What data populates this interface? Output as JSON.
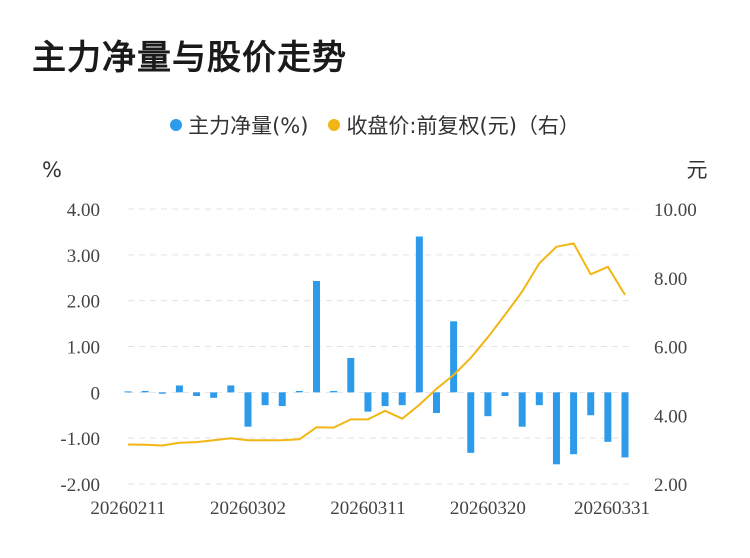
{
  "title": "主力净量与股价走势",
  "legend": [
    {
      "label": "主力净量(%)",
      "color": "#2e9bea"
    },
    {
      "label": "收盘价:前复权(元)（右）",
      "color": "#f2b614"
    }
  ],
  "chart_data": {
    "type": "bar+line",
    "title": "主力净量与股价走势",
    "left_axis": {
      "unit": "%",
      "ticks": [
        "4.00",
        "3.00",
        "2.00",
        "1.00",
        "0",
        "-1.00",
        "-2.00"
      ],
      "range": [
        -2,
        4
      ]
    },
    "right_axis": {
      "unit": "元",
      "ticks": [
        "10.00",
        "8.00",
        "6.00",
        "4.00",
        "2.00"
      ],
      "range": [
        2,
        10
      ]
    },
    "x_tick_labels": [
      "20260211",
      "20260302",
      "20260311",
      "20260320",
      "20260331"
    ],
    "x_tick_index": [
      0,
      7,
      14,
      21,
      28
    ],
    "grid": "horizontal dashed",
    "series": [
      {
        "name": "主力净量(%)",
        "kind": "bar",
        "axis": "left",
        "color": "#2e9bea",
        "values": [
          0.02,
          0.03,
          -0.03,
          0.15,
          -0.08,
          -0.12,
          0.15,
          -0.75,
          -0.28,
          -0.3,
          0.03,
          2.43,
          0.03,
          0.75,
          -0.42,
          -0.3,
          -0.28,
          3.4,
          -0.45,
          1.55,
          -1.32,
          -0.52,
          -0.08,
          -0.75,
          -0.28,
          -1.57,
          -1.35,
          -0.5,
          -1.08,
          -1.42
        ]
      },
      {
        "name": "收盘价:前复权(元)（右）",
        "kind": "line",
        "axis": "right",
        "color": "#f2b614",
        "values": [
          3.15,
          3.14,
          3.12,
          3.2,
          3.22,
          3.27,
          3.33,
          3.27,
          3.27,
          3.27,
          3.3,
          3.65,
          3.64,
          3.88,
          3.88,
          4.13,
          3.9,
          4.3,
          4.77,
          5.17,
          5.67,
          6.27,
          6.92,
          7.6,
          8.42,
          8.9,
          9.0,
          8.1,
          8.32,
          7.5
        ]
      }
    ]
  }
}
